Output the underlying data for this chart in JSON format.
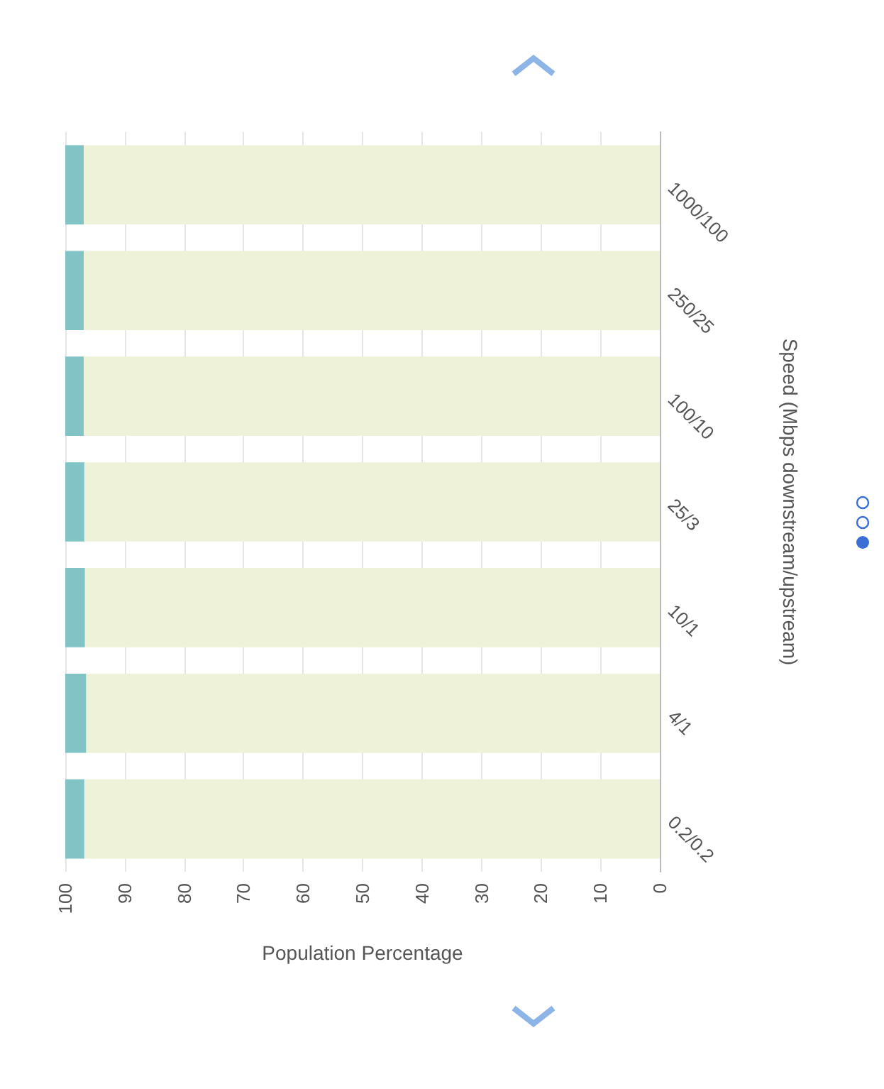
{
  "chart_data": {
    "type": "bar",
    "orientation": "horizontal",
    "stacked": true,
    "xlabel": "Population Percentage",
    "ylabel": "Speed (Mbps downstream/upstream)",
    "categories": [
      "1000/100",
      "250/25",
      "100/10",
      "25/3",
      "10/1",
      "4/1",
      "0.2/0.2"
    ],
    "series": [
      {
        "color": "#eef2d9",
        "values": [
          96.9,
          96.9,
          96.9,
          96.8,
          96.7,
          96.5,
          96.8
        ]
      },
      {
        "color": "#82c3c6",
        "values": [
          3.1,
          3.1,
          3.1,
          3.2,
          3.3,
          3.5,
          3.2
        ]
      }
    ],
    "xlim": [
      100,
      0
    ],
    "xticks": [
      100,
      90,
      80,
      70,
      60,
      50,
      40,
      30,
      20,
      10,
      0
    ],
    "grid": "x"
  }
}
